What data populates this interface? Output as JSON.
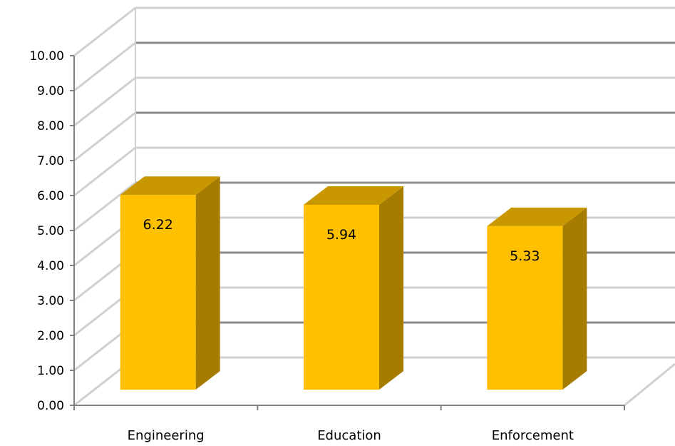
{
  "chart_data": {
    "type": "bar",
    "style": "3d-column",
    "categories": [
      "Engineering",
      "Education",
      "Enforcement"
    ],
    "values": [
      6.22,
      5.94,
      5.33
    ],
    "data_labels": [
      "6.22",
      "5.94",
      "5.33"
    ],
    "ylim": [
      0,
      10
    ],
    "y_ticks": [
      "0.00",
      "1.00",
      "2.00",
      "3.00",
      "4.00",
      "5.00",
      "6.00",
      "7.00",
      "8.00",
      "9.00",
      "10.00"
    ],
    "grid": true,
    "legend": "none",
    "colors": {
      "bar_front": "#FFC000",
      "bar_top": "#C99700",
      "bar_side": "#A67C00",
      "grid_light": "#D0D0D0",
      "grid_dark": "#8C8C8C",
      "axis": "#808080"
    }
  }
}
